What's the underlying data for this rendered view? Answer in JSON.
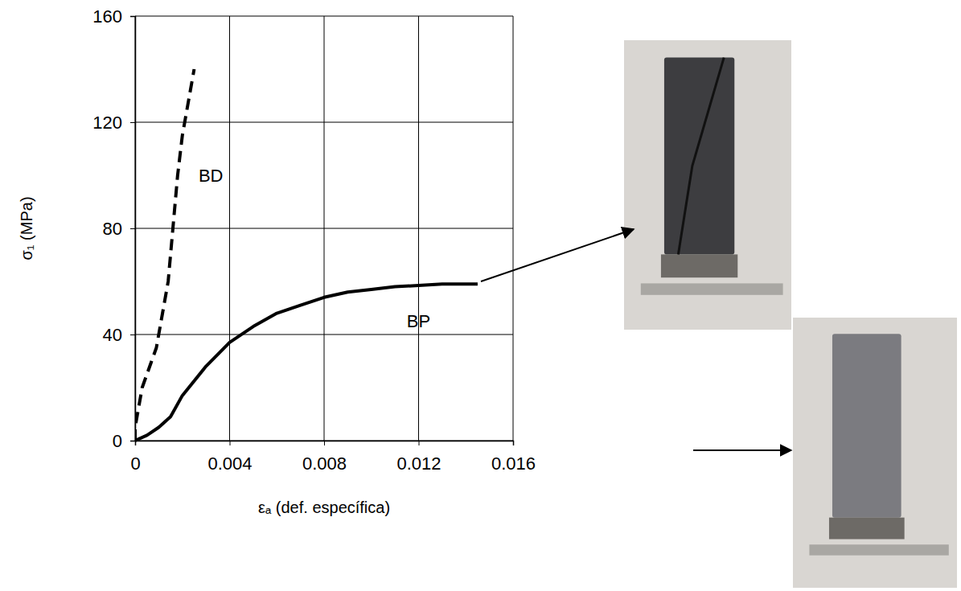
{
  "chart_data": {
    "type": "line",
    "x_label": "εₐ (def. específica)",
    "y_label": "σ₁ (MPa)",
    "xlim": [
      0,
      0.016
    ],
    "xticks": [
      0,
      0.004,
      0.008,
      0.012,
      0.016
    ],
    "ylim": [
      0,
      160
    ],
    "yticks": [
      0,
      40,
      80,
      120,
      160
    ],
    "grid": true,
    "series": [
      {
        "name": "BD",
        "color": "#000000",
        "line_style": "dashed",
        "x": [
          0,
          0,
          0.0001,
          0.0003,
          0.0007,
          0.0009,
          0.0012,
          0.0014,
          0.0016,
          0.0018,
          0.002,
          0.0022,
          0.0024,
          0.0025
        ],
        "values": [
          0,
          5,
          10,
          20,
          30,
          35,
          50,
          60,
          80,
          100,
          115,
          125,
          135,
          140
        ]
      },
      {
        "name": "BP",
        "color": "#000000",
        "line_style": "solid",
        "x": [
          0,
          0.0005,
          0.001,
          0.0015,
          0.002,
          0.003,
          0.004,
          0.005,
          0.006,
          0.007,
          0.008,
          0.009,
          0.01,
          0.011,
          0.012,
          0.013,
          0.0145
        ],
        "values": [
          0,
          2,
          5,
          9,
          17,
          28,
          37,
          43,
          48,
          51,
          54,
          56,
          57,
          58,
          58.5,
          59,
          59
        ]
      }
    ]
  }
}
